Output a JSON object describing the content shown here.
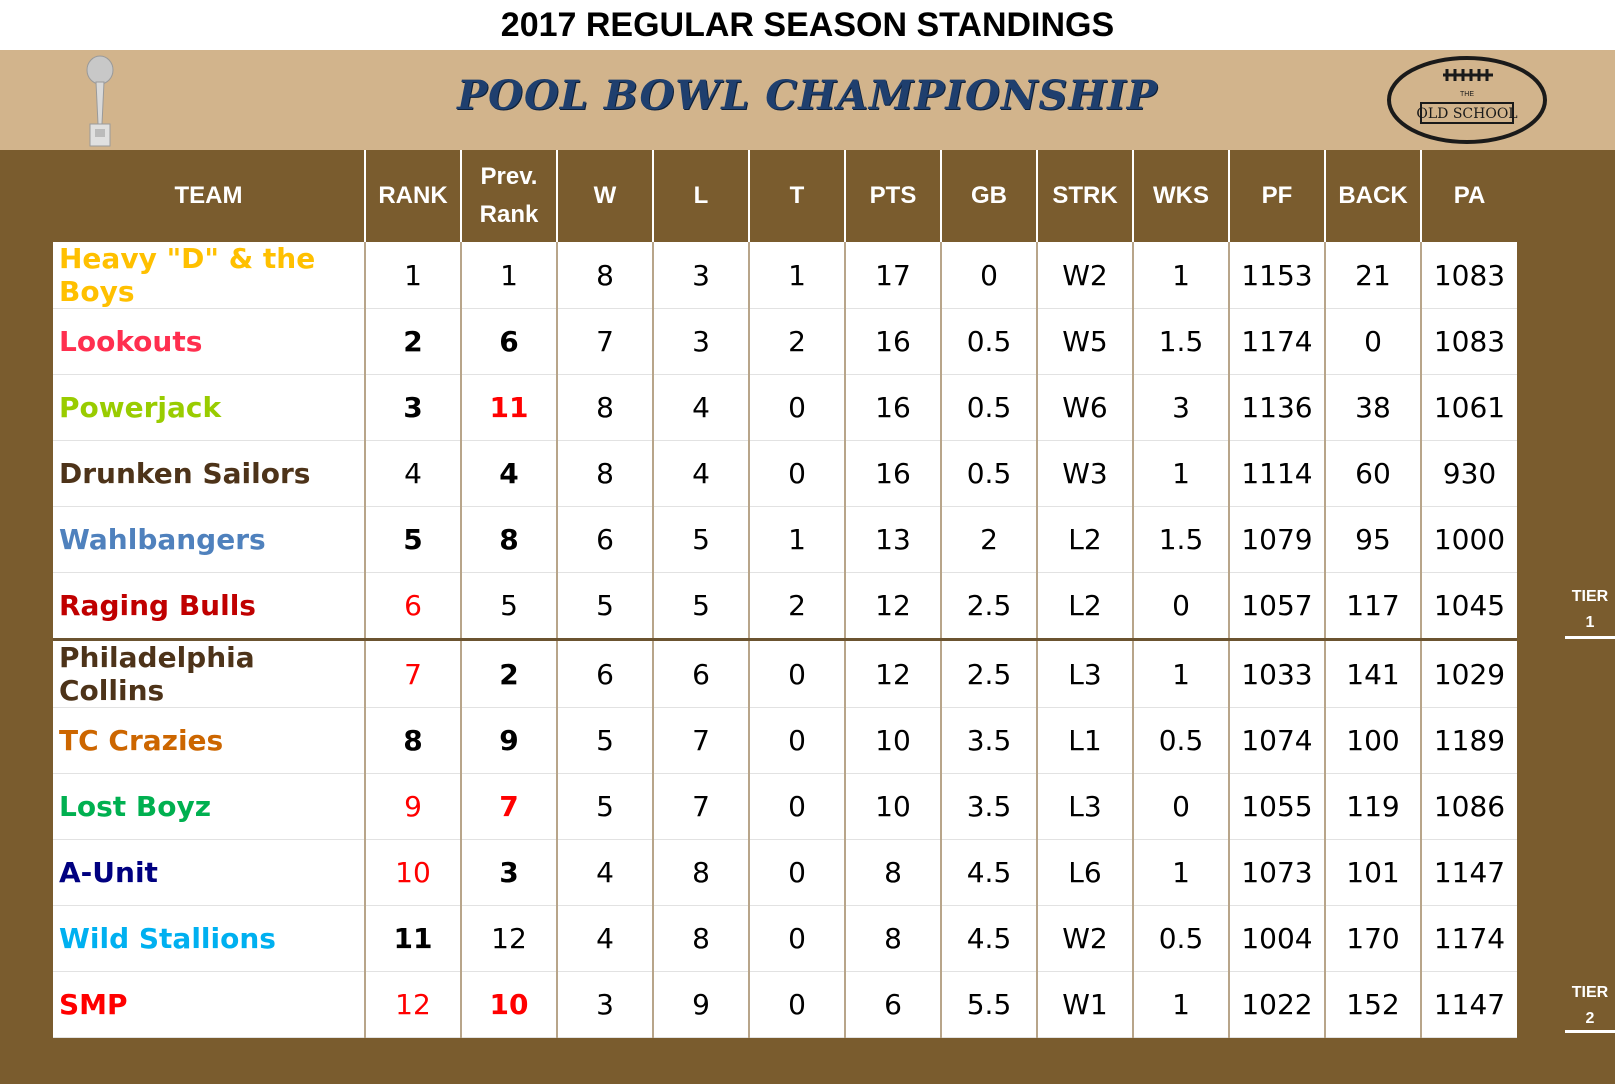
{
  "title": "2017 REGULAR SEASON STANDINGS",
  "banner": {
    "title": "POOL BOWL CHAMPIONSHIP",
    "logo_text": "OLD SCHOOL",
    "logo_small_text": "THE"
  },
  "columns": [
    "TEAM",
    "RANK",
    "Prev.\nRank",
    "W",
    "L",
    "T",
    "PTS",
    "GB",
    "STRK",
    "WKS",
    "PF",
    "BACK",
    "PA"
  ],
  "tiers": [
    {
      "line1": "TIER",
      "line2": "1"
    },
    {
      "line1": "TIER",
      "line2": "2"
    }
  ],
  "rows": [
    {
      "team": "Heavy \"D\" & the Boys",
      "team_color": "#ffc000",
      "rank": "1",
      "rank_color": "#000000",
      "rank_bold": false,
      "prev": "1",
      "prev_color": "#000000",
      "prev_bold": false,
      "w": "8",
      "l": "3",
      "t": "1",
      "pts": "17",
      "gb": "0",
      "strk": "W2",
      "wks": "1",
      "pf": "1153",
      "back": "21",
      "pa": "1083"
    },
    {
      "team": "Lookouts",
      "team_color": "#ff2f4f",
      "rank": "2",
      "rank_color": "#000000",
      "rank_bold": true,
      "prev": "6",
      "prev_color": "#000000",
      "prev_bold": true,
      "w": "7",
      "l": "3",
      "t": "2",
      "pts": "16",
      "gb": "0.5",
      "strk": "W5",
      "wks": "1.5",
      "pf": "1174",
      "back": "0",
      "pa": "1083"
    },
    {
      "team": "Powerjack",
      "team_color": "#99cc00",
      "rank": "3",
      "rank_color": "#000000",
      "rank_bold": true,
      "prev": "11",
      "prev_color": "#ff0000",
      "prev_bold": true,
      "w": "8",
      "l": "4",
      "t": "0",
      "pts": "16",
      "gb": "0.5",
      "strk": "W6",
      "wks": "3",
      "pf": "1136",
      "back": "38",
      "pa": "1061"
    },
    {
      "team": "Drunken Sailors",
      "team_color": "#4d3319",
      "rank": "4",
      "rank_color": "#000000",
      "rank_bold": false,
      "prev": "4",
      "prev_color": "#000000",
      "prev_bold": true,
      "w": "8",
      "l": "4",
      "t": "0",
      "pts": "16",
      "gb": "0.5",
      "strk": "W3",
      "wks": "1",
      "pf": "1114",
      "back": "60",
      "pa": "930"
    },
    {
      "team": "Wahlbangers",
      "team_color": "#4f81bd",
      "rank": "5",
      "rank_color": "#000000",
      "rank_bold": true,
      "prev": "8",
      "prev_color": "#000000",
      "prev_bold": true,
      "w": "6",
      "l": "5",
      "t": "1",
      "pts": "13",
      "gb": "2",
      "strk": "L2",
      "wks": "1.5",
      "pf": "1079",
      "back": "95",
      "pa": "1000"
    },
    {
      "team": "Raging Bulls",
      "team_color": "#c00000",
      "rank": "6",
      "rank_color": "#ff0000",
      "rank_bold": false,
      "prev": "5",
      "prev_color": "#000000",
      "prev_bold": false,
      "w": "5",
      "l": "5",
      "t": "2",
      "pts": "12",
      "gb": "2.5",
      "strk": "L2",
      "wks": "0",
      "pf": "1057",
      "back": "117",
      "pa": "1045"
    },
    {
      "team": "Philadelphia Collins",
      "team_color": "#4d3319",
      "rank": "7",
      "rank_color": "#ff0000",
      "rank_bold": false,
      "prev": "2",
      "prev_color": "#000000",
      "prev_bold": true,
      "w": "6",
      "l": "6",
      "t": "0",
      "pts": "12",
      "gb": "2.5",
      "strk": "L3",
      "wks": "1",
      "pf": "1033",
      "back": "141",
      "pa": "1029"
    },
    {
      "team": "TC Crazies",
      "team_color": "#cc6600",
      "rank": "8",
      "rank_color": "#000000",
      "rank_bold": true,
      "prev": "9",
      "prev_color": "#000000",
      "prev_bold": true,
      "w": "5",
      "l": "7",
      "t": "0",
      "pts": "10",
      "gb": "3.5",
      "strk": "L1",
      "wks": "0.5",
      "pf": "1074",
      "back": "100",
      "pa": "1189"
    },
    {
      "team": "Lost Boyz",
      "team_color": "#00b050",
      "rank": "9",
      "rank_color": "#ff0000",
      "rank_bold": false,
      "prev": "7",
      "prev_color": "#ff0000",
      "prev_bold": true,
      "w": "5",
      "l": "7",
      "t": "0",
      "pts": "10",
      "gb": "3.5",
      "strk": "L3",
      "wks": "0",
      "pf": "1055",
      "back": "119",
      "pa": "1086"
    },
    {
      "team": "A-Unit",
      "team_color": "#000080",
      "rank": "10",
      "rank_color": "#ff0000",
      "rank_bold": false,
      "prev": "3",
      "prev_color": "#000000",
      "prev_bold": true,
      "w": "4",
      "l": "8",
      "t": "0",
      "pts": "8",
      "gb": "4.5",
      "strk": "L6",
      "wks": "1",
      "pf": "1073",
      "back": "101",
      "pa": "1147"
    },
    {
      "team": "Wild Stallions",
      "team_color": "#00b0f0",
      "rank": "11",
      "rank_color": "#000000",
      "rank_bold": true,
      "prev": "12",
      "prev_color": "#000000",
      "prev_bold": false,
      "w": "4",
      "l": "8",
      "t": "0",
      "pts": "8",
      "gb": "4.5",
      "strk": "W2",
      "wks": "0.5",
      "pf": "1004",
      "back": "170",
      "pa": "1174"
    },
    {
      "team": "SMP",
      "team_color": "#ff0000",
      "rank": "12",
      "rank_color": "#ff0000",
      "rank_bold": false,
      "prev": "10",
      "prev_color": "#ff0000",
      "prev_bold": true,
      "w": "3",
      "l": "9",
      "t": "0",
      "pts": "6",
      "gb": "5.5",
      "strk": "W1",
      "wks": "1",
      "pf": "1022",
      "back": "152",
      "pa": "1147"
    }
  ]
}
